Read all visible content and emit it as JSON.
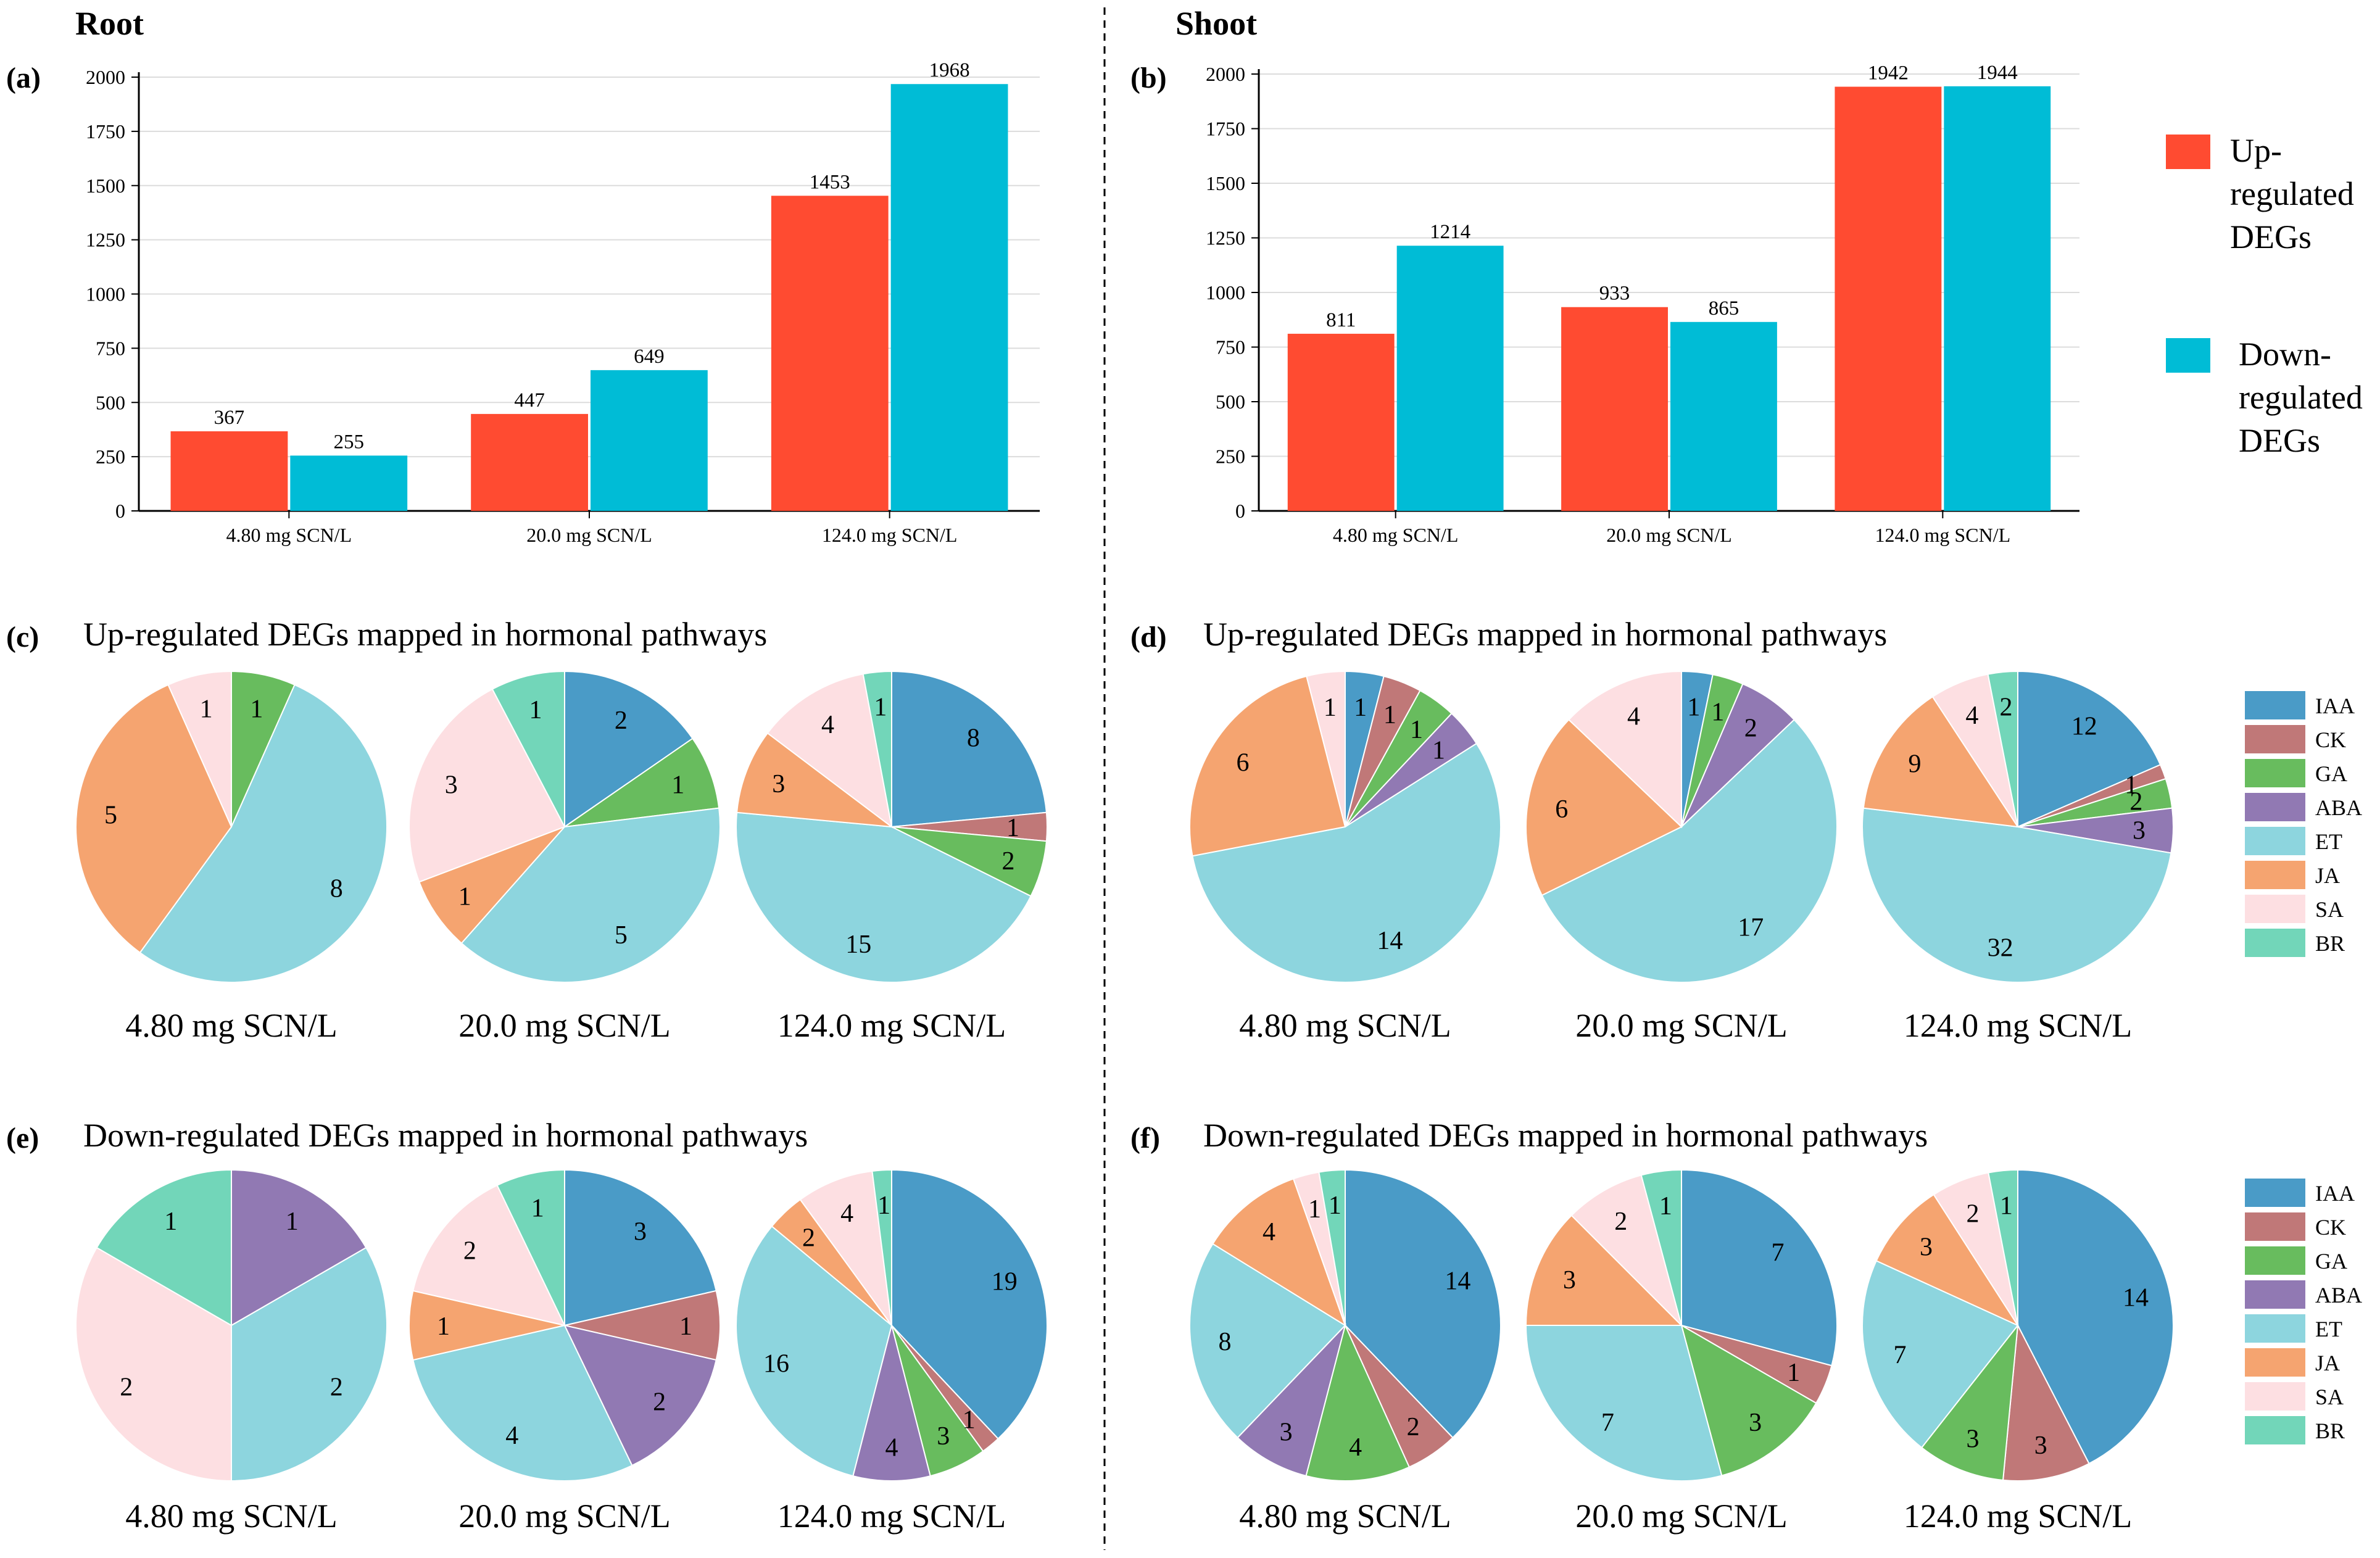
{
  "sections": {
    "root": "Root",
    "shoot": "Shoot"
  },
  "legend": {
    "up": {
      "label": [
        "Up-",
        "regulated",
        "DEGs"
      ],
      "color": "#FF4B31"
    },
    "down": {
      "label": [
        "Down-",
        "regulated",
        "DEGs"
      ],
      "color": "#00BCD6"
    }
  },
  "hormones": [
    {
      "name": "IAA",
      "color": "#4A9BC7"
    },
    {
      "name": "CK",
      "color": "#C07878"
    },
    {
      "name": "GA",
      "color": "#68BC5E"
    },
    {
      "name": "ABA",
      "color": "#9179B3"
    },
    {
      "name": "ET",
      "color": "#8DD5DE"
    },
    {
      "name": "JA",
      "color": "#F5A470"
    },
    {
      "name": "SA",
      "color": "#FDDFE2"
    },
    {
      "name": "BR",
      "color": "#72D6B9"
    }
  ],
  "chart_data": [
    {
      "id": "a",
      "panel_label": "(a)",
      "type": "bar",
      "categories": [
        "4.80 mg SCN/L",
        "20.0 mg SCN/L",
        "124.0 mg SCN/L"
      ],
      "series": [
        {
          "name": "Up-regulated DEGs",
          "values": [
            367,
            447,
            1453
          ]
        },
        {
          "name": "Down-regulated DEGs",
          "values": [
            255,
            649,
            1968
          ]
        }
      ],
      "ylim": [
        0,
        2000
      ],
      "yticks": [
        "0",
        "250",
        "500",
        "750",
        "1000",
        "1250",
        "1500",
        "1750",
        "2000"
      ],
      "title": "",
      "xlabel": "",
      "ylabel": ""
    },
    {
      "id": "b",
      "panel_label": "(b)",
      "type": "bar",
      "categories": [
        "4.80 mg SCN/L",
        "20.0 mg SCN/L",
        "124.0 mg SCN/L"
      ],
      "series": [
        {
          "name": "Up-regulated DEGs",
          "values": [
            811,
            933,
            1942
          ]
        },
        {
          "name": "Down-regulated DEGs",
          "values": [
            1214,
            865,
            1944
          ]
        }
      ],
      "ylim": [
        0,
        2000
      ],
      "yticks": [
        "0",
        "250",
        "500",
        "750",
        "1000",
        "1250",
        "1500",
        "1750",
        "2000"
      ],
      "title": "",
      "xlabel": "",
      "ylabel": ""
    },
    {
      "id": "c",
      "panel_label": "(c)",
      "type": "pie",
      "title": "Up-regulated DEGs mapped in hormonal pathways",
      "categories": [
        "IAA",
        "CK",
        "GA",
        "ABA",
        "ET",
        "JA",
        "SA",
        "BR"
      ],
      "pies": [
        {
          "caption": "4.80 mg SCN/L",
          "values": [
            0,
            0,
            1,
            0,
            8,
            5,
            1,
            0
          ]
        },
        {
          "caption": "20.0 mg SCN/L",
          "values": [
            2,
            0,
            1,
            0,
            5,
            1,
            3,
            1
          ]
        },
        {
          "caption": "124.0 mg SCN/L",
          "values": [
            8,
            1,
            2,
            0,
            15,
            3,
            4,
            1
          ]
        }
      ]
    },
    {
      "id": "d",
      "panel_label": "(d)",
      "type": "pie",
      "title": "Up-regulated DEGs mapped in hormonal pathways",
      "categories": [
        "IAA",
        "CK",
        "GA",
        "ABA",
        "ET",
        "JA",
        "SA",
        "BR"
      ],
      "pies": [
        {
          "caption": "4.80 mg SCN/L",
          "values": [
            1,
            1,
            1,
            1,
            14,
            6,
            1,
            0
          ]
        },
        {
          "caption": "20.0 mg SCN/L",
          "values": [
            1,
            0,
            1,
            2,
            17,
            6,
            4,
            0
          ]
        },
        {
          "caption": "124.0 mg SCN/L",
          "values": [
            12,
            1,
            2,
            3,
            32,
            9,
            4,
            2
          ]
        }
      ]
    },
    {
      "id": "e",
      "panel_label": "(e)",
      "type": "pie",
      "title": "Down-regulated DEGs mapped in hormonal pathways",
      "categories": [
        "IAA",
        "CK",
        "GA",
        "ABA",
        "ET",
        "JA",
        "SA",
        "BR"
      ],
      "pies": [
        {
          "caption": "4.80 mg SCN/L",
          "values": [
            0,
            0,
            0,
            1,
            2,
            0,
            2,
            1
          ]
        },
        {
          "caption": "20.0 mg SCN/L",
          "values": [
            3,
            1,
            0,
            2,
            4,
            1,
            2,
            1
          ]
        },
        {
          "caption": "124.0 mg SCN/L",
          "values": [
            19,
            1,
            3,
            4,
            16,
            2,
            4,
            1
          ]
        }
      ]
    },
    {
      "id": "f",
      "panel_label": "(f)",
      "type": "pie",
      "title": "Down-regulated DEGs mapped in hormonal pathways",
      "categories": [
        "IAA",
        "CK",
        "GA",
        "ABA",
        "ET",
        "JA",
        "SA",
        "BR"
      ],
      "pies": [
        {
          "caption": "4.80 mg SCN/L",
          "values": [
            14,
            2,
            4,
            3,
            8,
            4,
            1,
            1
          ]
        },
        {
          "caption": "20.0 mg SCN/L",
          "values": [
            7,
            1,
            3,
            0,
            7,
            3,
            2,
            1
          ]
        },
        {
          "caption": "124.0 mg SCN/L",
          "values": [
            14,
            3,
            3,
            0,
            7,
            3,
            2,
            1
          ]
        }
      ]
    }
  ]
}
